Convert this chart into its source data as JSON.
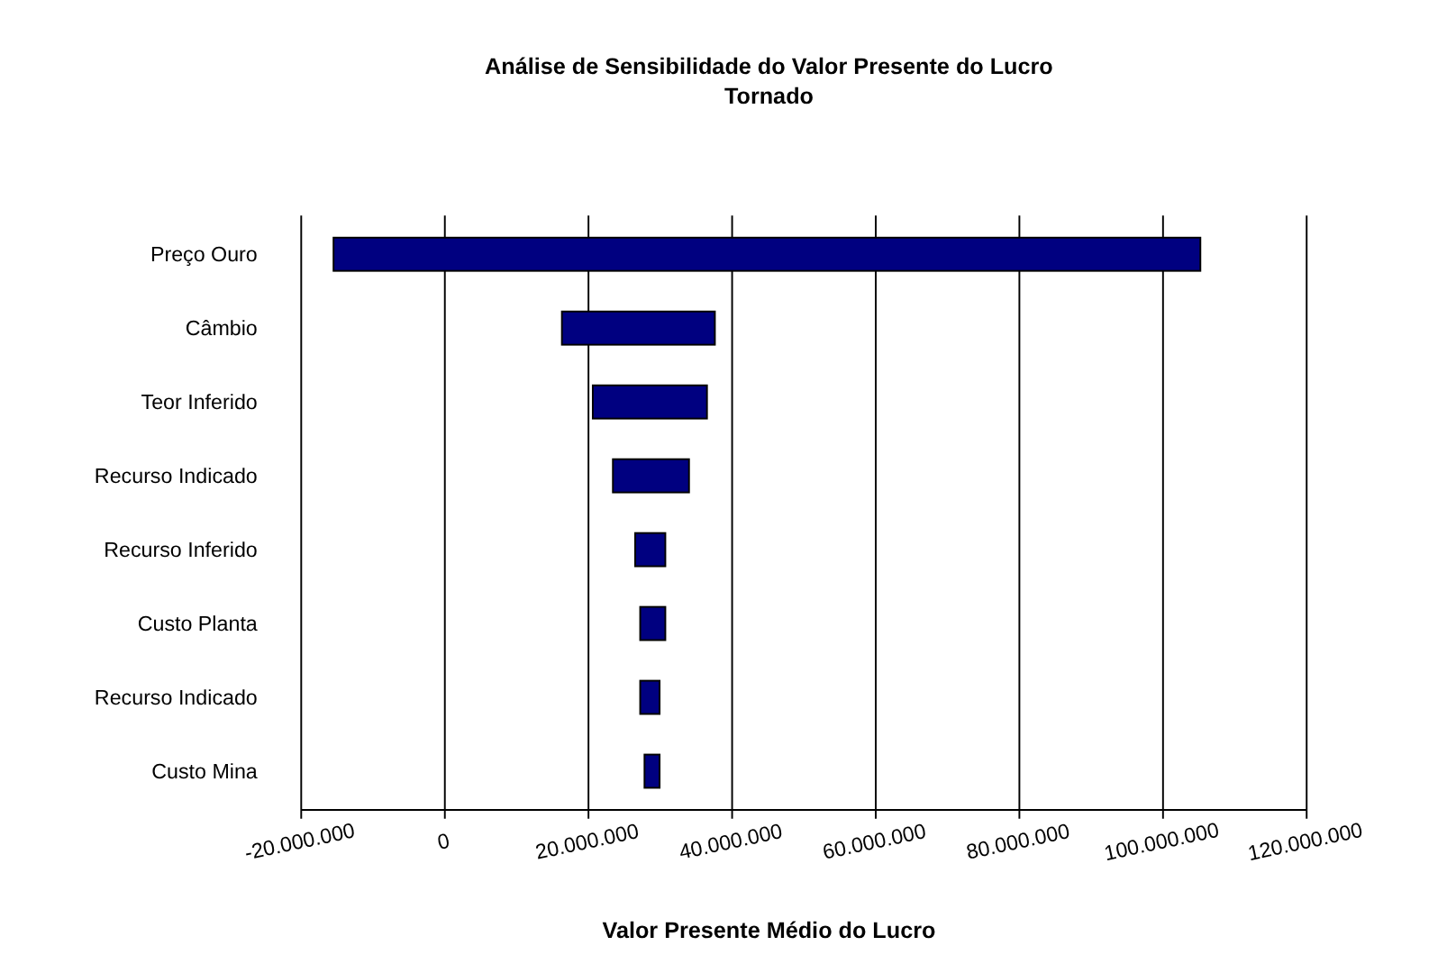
{
  "chart_data": {
    "type": "bar",
    "orientation": "horizontal",
    "title": "Análise de Sensibilidade do Valor Presente do Lucro",
    "subtitle": "Tornado",
    "xlabel": "Valor Presente Médio do Lucro",
    "categories": [
      "Preço Ouro",
      "Câmbio",
      "Teor Inferido",
      "Recurso Indicado",
      "Recurso Inferido",
      "Custo Planta",
      "Recurso Indicado",
      "Custo Mina"
    ],
    "base": [
      -15500000,
      16300000,
      20600000,
      23400000,
      26500000,
      27200000,
      27200000,
      27800000
    ],
    "values": [
      120700000,
      21300000,
      15900000,
      10600000,
      4200000,
      3500000,
      2700000,
      2100000
    ],
    "color": "#000080",
    "xlim": [
      -20000000,
      120000000
    ],
    "xticks": [
      {
        "value": -20000000,
        "label": "-20.000.000"
      },
      0,
      {
        "value": 20000000,
        "label": "20.000.000"
      },
      {
        "value": 40000000,
        "label": "40.000.000"
      },
      {
        "value": 60000000,
        "label": "60.000.000"
      },
      {
        "value": 80000000,
        "label": "80.000.000"
      },
      {
        "value": 100000000,
        "label": "100.000.000"
      },
      {
        "value": 120000000,
        "label": "120.000.000"
      }
    ],
    "grid": "x"
  }
}
